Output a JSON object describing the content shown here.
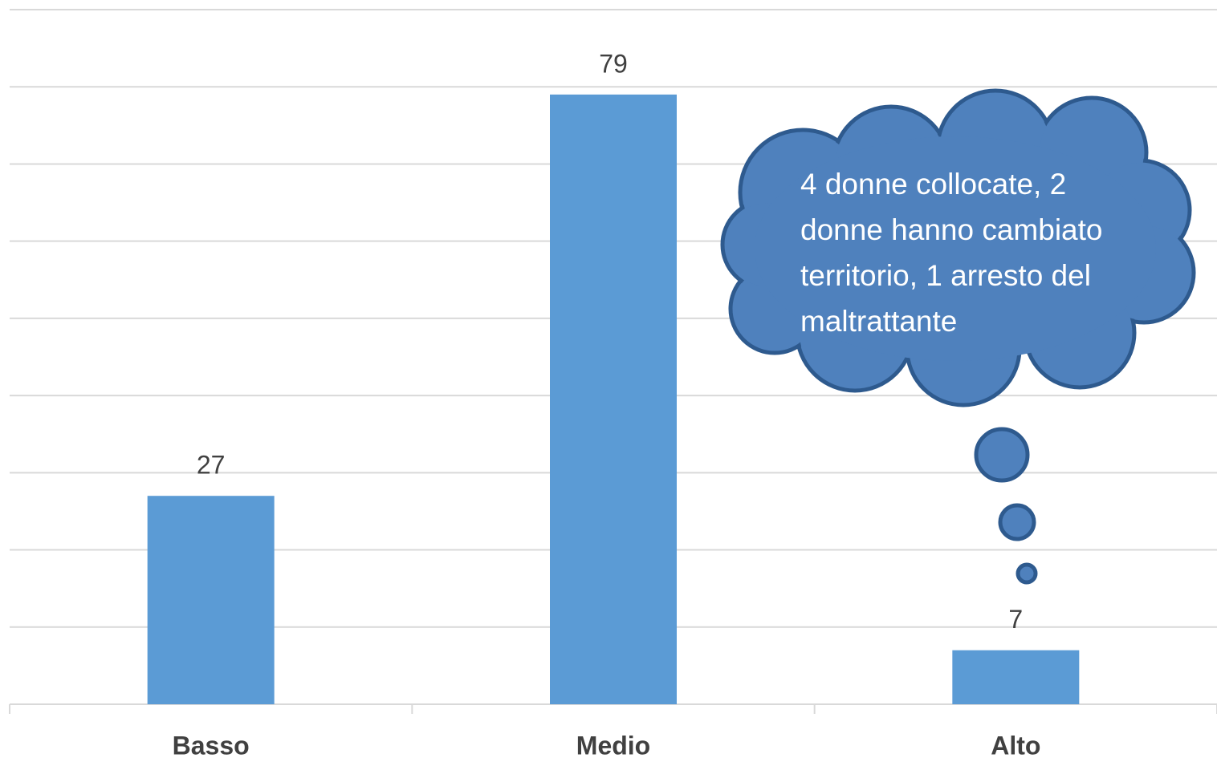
{
  "chart_data": {
    "type": "bar",
    "categories": [
      "Basso",
      "Medio",
      "Alto"
    ],
    "values": [
      27,
      79,
      7
    ],
    "color": "#5b9bd5",
    "ylim": [
      0,
      90
    ],
    "yticks": [
      0,
      10,
      20,
      30,
      40,
      50,
      60,
      70,
      80,
      90
    ],
    "grid": true,
    "annotation": [
      "4 donne collocate, 2",
      "donne hanno cambiato",
      "territorio, 1 arresto del",
      "maltrattante"
    ]
  }
}
